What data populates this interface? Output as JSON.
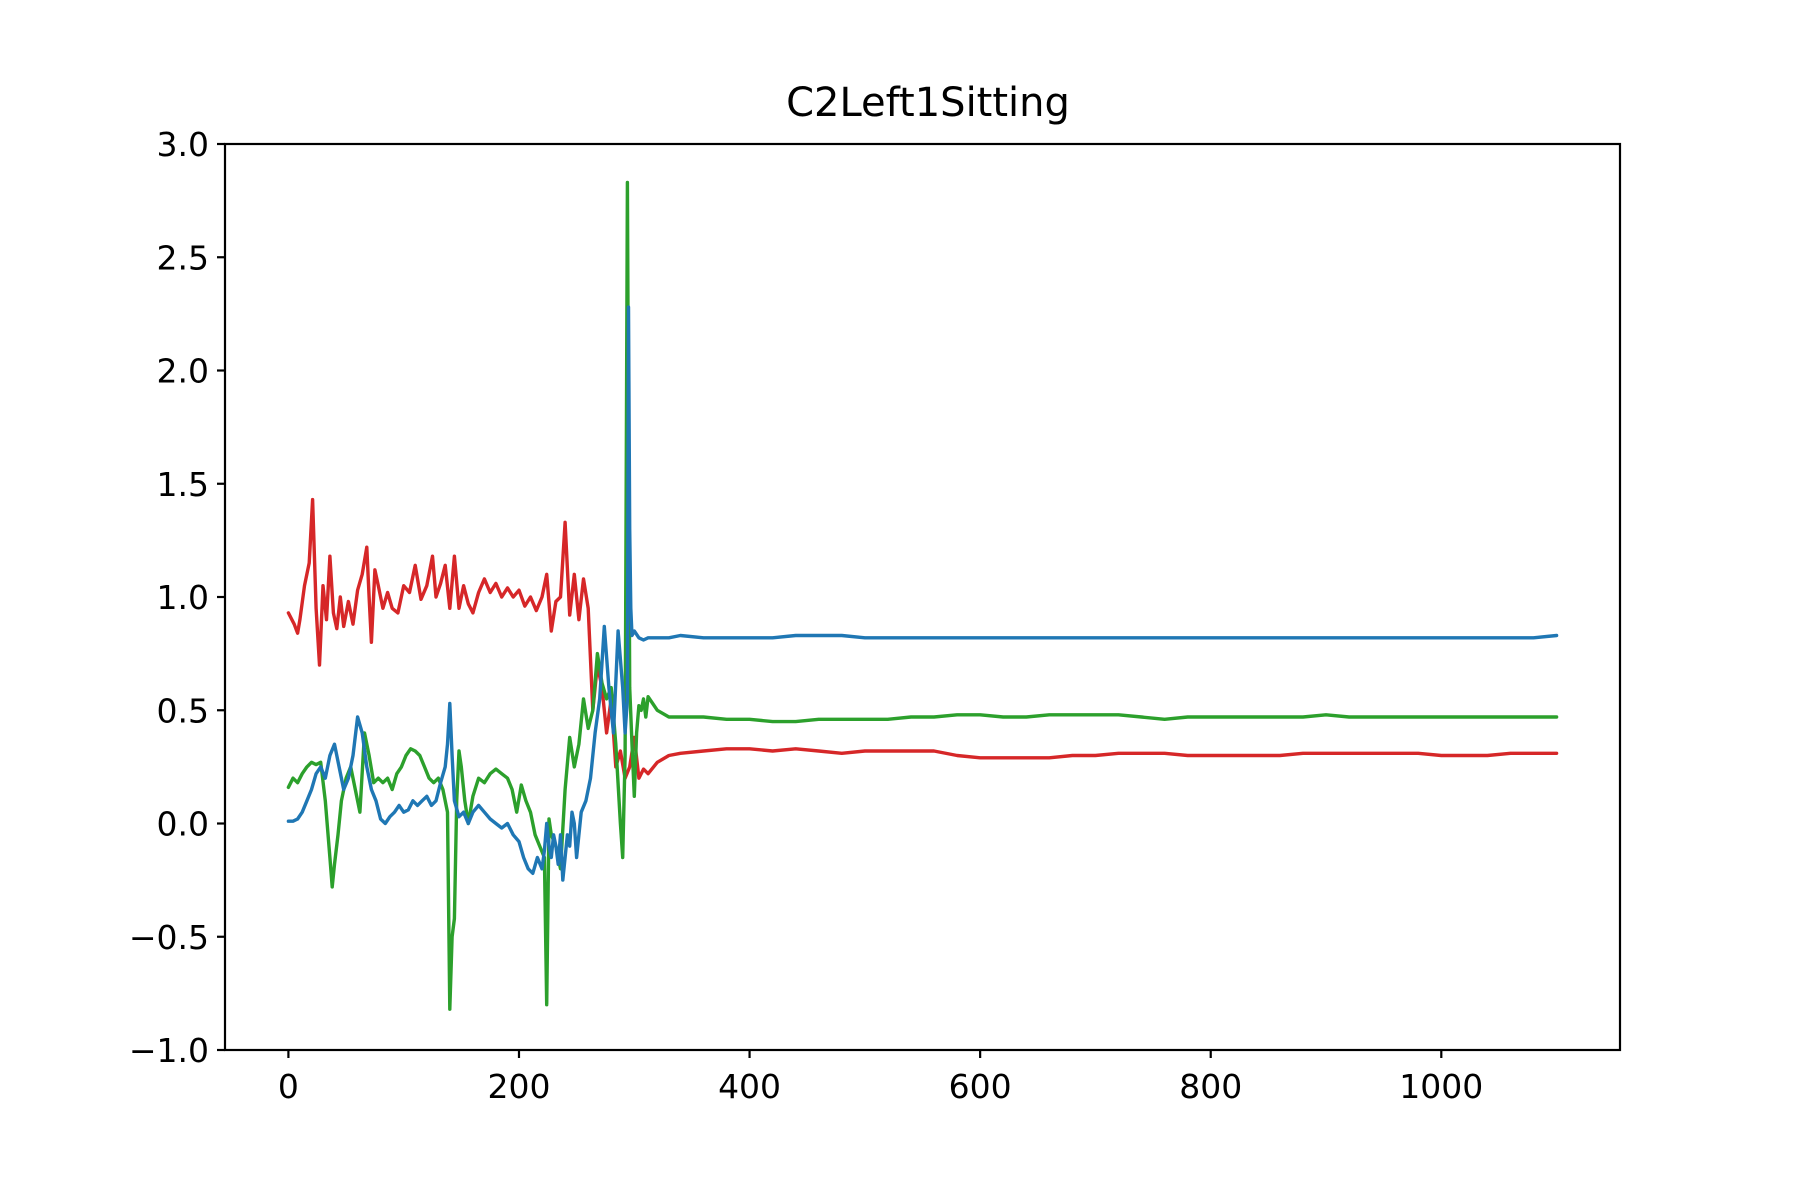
{
  "chart_data": {
    "type": "line",
    "title": "C2Left1Sitting",
    "xlabel": "",
    "ylabel": "",
    "xlim": [
      -55,
      1155
    ],
    "ylim": [
      -1.0,
      3.0
    ],
    "grid": false,
    "x_ticks": [
      0,
      200,
      400,
      600,
      800,
      1000
    ],
    "x_tick_labels": [
      "0",
      "200",
      "400",
      "600",
      "800",
      "1000"
    ],
    "y_ticks": [
      -1.0,
      -0.5,
      0.0,
      0.5,
      1.0,
      1.5,
      2.0,
      2.5,
      3.0
    ],
    "y_tick_labels": [
      "−1.0",
      "−0.5",
      "0.0",
      "0.5",
      "1.0",
      "1.5",
      "2.0",
      "2.5",
      "3.0"
    ],
    "series": [
      {
        "color": "#d62728",
        "x": [
          0,
          5,
          8,
          10,
          14,
          18,
          21,
          24,
          27,
          30,
          33,
          36,
          39,
          42,
          45,
          48,
          52,
          56,
          60,
          64,
          68,
          70,
          72,
          75,
          78,
          82,
          86,
          90,
          95,
          100,
          105,
          110,
          115,
          120,
          125,
          128,
          132,
          136,
          140,
          144,
          148,
          152,
          156,
          160,
          165,
          170,
          175,
          180,
          185,
          190,
          195,
          200,
          205,
          210,
          215,
          220,
          224,
          228,
          232,
          236,
          240,
          244,
          248,
          252,
          256,
          260,
          264,
          268,
          272,
          276,
          280,
          284,
          288,
          292,
          296,
          300,
          304,
          308,
          312,
          320,
          330,
          340,
          360,
          380,
          400,
          420,
          440,
          460,
          480,
          500,
          520,
          540,
          560,
          580,
          600,
          620,
          640,
          660,
          680,
          700,
          720,
          740,
          760,
          780,
          800,
          820,
          840,
          860,
          880,
          900,
          920,
          940,
          960,
          980,
          1000,
          1020,
          1040,
          1060,
          1080,
          1100
        ],
        "y": [
          0.93,
          0.88,
          0.84,
          0.9,
          1.05,
          1.15,
          1.43,
          0.95,
          0.7,
          1.05,
          0.9,
          1.18,
          0.93,
          0.86,
          1.0,
          0.87,
          0.98,
          0.88,
          1.03,
          1.1,
          1.22,
          1.0,
          0.8,
          1.12,
          1.05,
          0.95,
          1.02,
          0.95,
          0.93,
          1.05,
          1.02,
          1.14,
          0.99,
          1.05,
          1.18,
          1.0,
          1.06,
          1.14,
          0.95,
          1.18,
          0.95,
          1.05,
          0.97,
          0.93,
          1.02,
          1.08,
          1.02,
          1.06,
          1.0,
          1.04,
          1.0,
          1.03,
          0.96,
          1.0,
          0.94,
          1.0,
          1.1,
          0.85,
          0.98,
          1.0,
          1.33,
          0.92,
          1.1,
          0.9,
          1.08,
          0.95,
          0.5,
          0.7,
          0.6,
          0.4,
          0.55,
          0.25,
          0.32,
          0.2,
          0.25,
          0.38,
          0.2,
          0.24,
          0.22,
          0.27,
          0.3,
          0.31,
          0.32,
          0.33,
          0.33,
          0.32,
          0.33,
          0.32,
          0.31,
          0.32,
          0.32,
          0.32,
          0.32,
          0.3,
          0.29,
          0.29,
          0.29,
          0.29,
          0.3,
          0.3,
          0.31,
          0.31,
          0.31,
          0.3,
          0.3,
          0.3,
          0.3,
          0.3,
          0.31,
          0.31,
          0.31,
          0.31,
          0.31,
          0.31,
          0.3,
          0.3,
          0.3,
          0.31,
          0.31,
          0.31
        ]
      },
      {
        "color": "#2ca02c",
        "x": [
          0,
          4,
          8,
          12,
          16,
          20,
          24,
          28,
          32,
          36,
          38,
          40,
          43,
          46,
          50,
          54,
          58,
          62,
          66,
          70,
          74,
          78,
          82,
          86,
          90,
          94,
          98,
          102,
          106,
          110,
          114,
          118,
          122,
          126,
          130,
          134,
          138,
          140,
          142,
          144,
          146,
          148,
          150,
          153,
          156,
          160,
          165,
          170,
          175,
          180,
          185,
          190,
          194,
          198,
          202,
          206,
          210,
          214,
          218,
          222,
          224,
          226,
          228,
          232,
          236,
          240,
          244,
          248,
          252,
          256,
          260,
          264,
          268,
          272,
          276,
          280,
          284,
          288,
          290,
          292,
          294,
          296,
          298,
          300,
          302,
          304,
          306,
          308,
          310,
          312,
          316,
          320,
          330,
          340,
          360,
          380,
          400,
          420,
          440,
          460,
          480,
          500,
          520,
          540,
          560,
          580,
          600,
          620,
          640,
          660,
          680,
          700,
          720,
          740,
          760,
          780,
          800,
          820,
          840,
          860,
          880,
          900,
          920,
          940,
          960,
          980,
          1000,
          1020,
          1040,
          1060,
          1080,
          1100
        ],
        "y": [
          0.16,
          0.2,
          0.18,
          0.22,
          0.25,
          0.27,
          0.26,
          0.27,
          0.1,
          -0.15,
          -0.28,
          -0.18,
          -0.05,
          0.1,
          0.2,
          0.25,
          0.15,
          0.05,
          0.4,
          0.3,
          0.18,
          0.2,
          0.18,
          0.2,
          0.15,
          0.22,
          0.25,
          0.3,
          0.33,
          0.32,
          0.3,
          0.25,
          0.2,
          0.18,
          0.2,
          0.15,
          0.05,
          -0.82,
          -0.5,
          -0.42,
          0.1,
          0.32,
          0.25,
          0.1,
          0.0,
          0.12,
          0.2,
          0.18,
          0.22,
          0.24,
          0.22,
          0.2,
          0.15,
          0.05,
          0.17,
          0.1,
          0.05,
          -0.05,
          -0.1,
          -0.15,
          -0.8,
          0.02,
          -0.05,
          -0.1,
          -0.2,
          0.15,
          0.38,
          0.25,
          0.35,
          0.55,
          0.42,
          0.5,
          0.75,
          0.62,
          0.55,
          0.6,
          0.35,
          0.0,
          -0.15,
          0.3,
          2.83,
          0.6,
          0.35,
          0.12,
          0.4,
          0.52,
          0.5,
          0.55,
          0.47,
          0.56,
          0.53,
          0.5,
          0.47,
          0.47,
          0.47,
          0.46,
          0.46,
          0.45,
          0.45,
          0.46,
          0.46,
          0.46,
          0.46,
          0.47,
          0.47,
          0.48,
          0.48,
          0.47,
          0.47,
          0.48,
          0.48,
          0.48,
          0.48,
          0.47,
          0.46,
          0.47,
          0.47,
          0.47,
          0.47,
          0.47,
          0.47,
          0.48,
          0.47,
          0.47,
          0.47,
          0.47,
          0.47,
          0.47,
          0.47,
          0.47,
          0.47,
          0.47
        ]
      },
      {
        "color": "#1f77b4",
        "x": [
          0,
          4,
          8,
          12,
          16,
          20,
          24,
          28,
          32,
          36,
          40,
          44,
          48,
          52,
          56,
          60,
          64,
          68,
          72,
          76,
          80,
          84,
          88,
          92,
          96,
          100,
          104,
          108,
          112,
          116,
          120,
          124,
          128,
          132,
          136,
          138,
          140,
          142,
          144,
          148,
          152,
          156,
          160,
          165,
          170,
          175,
          180,
          185,
          190,
          195,
          200,
          204,
          208,
          212,
          216,
          220,
          222,
          224,
          226,
          228,
          230,
          232,
          234,
          236,
          238,
          240,
          242,
          244,
          246,
          248,
          250,
          254,
          258,
          262,
          266,
          270,
          274,
          278,
          282,
          286,
          290,
          292,
          294,
          295,
          296,
          297,
          298,
          300,
          304,
          308,
          312,
          320,
          330,
          340,
          360,
          380,
          400,
          420,
          440,
          460,
          480,
          500,
          520,
          540,
          560,
          580,
          600,
          620,
          640,
          660,
          680,
          700,
          720,
          740,
          760,
          780,
          800,
          820,
          840,
          860,
          880,
          900,
          920,
          940,
          960,
          980,
          1000,
          1020,
          1040,
          1060,
          1080,
          1100
        ],
        "y": [
          0.01,
          0.01,
          0.02,
          0.05,
          0.1,
          0.15,
          0.22,
          0.25,
          0.2,
          0.3,
          0.35,
          0.25,
          0.15,
          0.2,
          0.3,
          0.47,
          0.4,
          0.25,
          0.15,
          0.1,
          0.02,
          0.0,
          0.03,
          0.05,
          0.08,
          0.05,
          0.06,
          0.1,
          0.08,
          0.1,
          0.12,
          0.08,
          0.1,
          0.18,
          0.25,
          0.35,
          0.53,
          0.3,
          0.1,
          0.03,
          0.05,
          0.0,
          0.05,
          0.08,
          0.05,
          0.02,
          0.0,
          -0.02,
          0.0,
          -0.05,
          -0.08,
          -0.15,
          -0.2,
          -0.22,
          -0.15,
          -0.2,
          -0.12,
          0.0,
          -0.1,
          -0.15,
          -0.05,
          -0.1,
          -0.18,
          -0.05,
          -0.25,
          -0.15,
          -0.05,
          -0.1,
          0.05,
          0.0,
          -0.15,
          0.05,
          0.1,
          0.2,
          0.4,
          0.55,
          0.87,
          0.6,
          0.4,
          0.85,
          0.6,
          0.4,
          0.55,
          2.28,
          1.3,
          0.95,
          0.83,
          0.85,
          0.82,
          0.81,
          0.82,
          0.82,
          0.82,
          0.83,
          0.82,
          0.82,
          0.82,
          0.82,
          0.83,
          0.83,
          0.83,
          0.82,
          0.82,
          0.82,
          0.82,
          0.82,
          0.82,
          0.82,
          0.82,
          0.82,
          0.82,
          0.82,
          0.82,
          0.82,
          0.82,
          0.82,
          0.82,
          0.82,
          0.82,
          0.82,
          0.82,
          0.82,
          0.82,
          0.82,
          0.82,
          0.82,
          0.82,
          0.82,
          0.82,
          0.82,
          0.82,
          0.83
        ]
      }
    ]
  }
}
